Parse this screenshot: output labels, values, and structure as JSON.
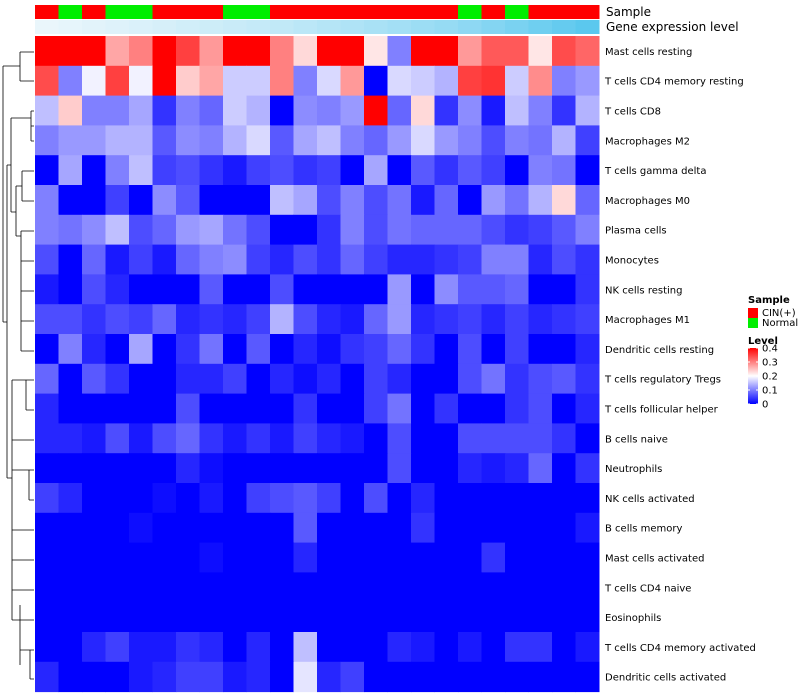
{
  "chart_data": {
    "type": "heatmap",
    "title": "",
    "annotation_labels": [
      "Sample",
      "Gene expression level"
    ],
    "samples": [
      "CIN(+)",
      "Normal",
      "CIN(+)",
      "Normal",
      "Normal",
      "CIN(+)",
      "CIN(+)",
      "CIN(+)",
      "Normal",
      "Normal",
      "CIN(+)",
      "CIN(+)",
      "CIN(+)",
      "CIN(+)",
      "CIN(+)",
      "CIN(+)",
      "CIN(+)",
      "CIN(+)",
      "Normal",
      "CIN(+)",
      "Normal",
      "CIN(+)",
      "CIN(+)",
      "CIN(+)"
    ],
    "expression_level": [
      0.1,
      0.12,
      0.14,
      0.16,
      0.18,
      0.2,
      0.22,
      0.24,
      0.26,
      0.28,
      0.3,
      0.33,
      0.36,
      0.39,
      0.42,
      0.45,
      0.48,
      0.51,
      0.55,
      0.6,
      0.65,
      0.7,
      0.75,
      0.8
    ],
    "rows": [
      "Mast cells resting",
      "T cells CD4 memory resting",
      "T cells CD8",
      "Macrophages M2",
      "T cells gamma delta",
      "Macrophages M0",
      "Plasma cells",
      "Monocytes",
      "NK cells resting",
      "Macrophages M1",
      "Dendritic cells resting",
      "T cells regulatory  Tregs",
      "T cells follicular helper",
      "B cells naive",
      "Neutrophils",
      "NK cells activated",
      "B cells memory",
      "Mast cells activated",
      "T cells CD4 naive",
      "Eosinophils",
      "T cells CD4 memory activated",
      "Dendritic cells activated"
    ],
    "values": [
      [
        0.4,
        0.4,
        0.4,
        0.27,
        0.3,
        0.4,
        0.35,
        0.28,
        0.4,
        0.4,
        0.3,
        0.23,
        0.4,
        0.4,
        0.22,
        0.1,
        0.4,
        0.4,
        0.28,
        0.33,
        0.33,
        0.22,
        0.34,
        0.32
      ],
      [
        0.34,
        0.1,
        0.19,
        0.35,
        0.19,
        0.4,
        0.24,
        0.27,
        0.16,
        0.16,
        0.3,
        0.1,
        0.17,
        0.28,
        0.0,
        0.17,
        0.16,
        0.14,
        0.35,
        0.36,
        0.16,
        0.29,
        0.1,
        0.12
      ],
      [
        0.15,
        0.24,
        0.1,
        0.1,
        0.13,
        0.04,
        0.1,
        0.08,
        0.16,
        0.14,
        0.0,
        0.11,
        0.1,
        0.12,
        0.4,
        0.08,
        0.23,
        0.04,
        0.11,
        0.02,
        0.15,
        0.1,
        0.04,
        0.14
      ],
      [
        0.1,
        0.12,
        0.12,
        0.14,
        0.14,
        0.07,
        0.11,
        0.1,
        0.14,
        0.17,
        0.07,
        0.13,
        0.15,
        0.1,
        0.08,
        0.12,
        0.17,
        0.12,
        0.1,
        0.06,
        0.1,
        0.09,
        0.14,
        0.05
      ],
      [
        0.0,
        0.13,
        0.0,
        0.1,
        0.15,
        0.05,
        0.06,
        0.04,
        0.02,
        0.05,
        0.06,
        0.04,
        0.05,
        0.0,
        0.13,
        0.0,
        0.07,
        0.04,
        0.07,
        0.05,
        0.0,
        0.1,
        0.09,
        0.0
      ],
      [
        0.1,
        0.0,
        0.0,
        0.05,
        0.0,
        0.11,
        0.07,
        0.0,
        0.0,
        0.0,
        0.15,
        0.13,
        0.06,
        0.1,
        0.06,
        0.09,
        0.02,
        0.08,
        0.0,
        0.12,
        0.09,
        0.14,
        0.23,
        0.08
      ],
      [
        0.1,
        0.09,
        0.11,
        0.15,
        0.06,
        0.08,
        0.12,
        0.13,
        0.09,
        0.06,
        0.0,
        0.0,
        0.04,
        0.1,
        0.06,
        0.09,
        0.08,
        0.08,
        0.08,
        0.06,
        0.04,
        0.05,
        0.07,
        0.1
      ],
      [
        0.06,
        0.0,
        0.08,
        0.02,
        0.05,
        0.02,
        0.08,
        0.1,
        0.11,
        0.05,
        0.03,
        0.06,
        0.04,
        0.08,
        0.05,
        0.03,
        0.03,
        0.04,
        0.05,
        0.1,
        0.1,
        0.03,
        0.06,
        0.04
      ],
      [
        0.02,
        0.0,
        0.06,
        0.03,
        0.0,
        0.0,
        0.0,
        0.07,
        0.0,
        0.0,
        0.06,
        0.0,
        0.0,
        0.0,
        0.0,
        0.12,
        0.0,
        0.11,
        0.07,
        0.07,
        0.08,
        0.0,
        0.0,
        0.04
      ],
      [
        0.06,
        0.06,
        0.04,
        0.06,
        0.05,
        0.08,
        0.03,
        0.04,
        0.03,
        0.05,
        0.14,
        0.06,
        0.03,
        0.02,
        0.08,
        0.12,
        0.03,
        0.04,
        0.05,
        0.03,
        0.05,
        0.03,
        0.04,
        0.05
      ],
      [
        0.0,
        0.1,
        0.03,
        0.0,
        0.13,
        0.0,
        0.04,
        0.09,
        0.0,
        0.07,
        0.0,
        0.03,
        0.01,
        0.04,
        0.05,
        0.08,
        0.04,
        0.0,
        0.06,
        0.0,
        0.05,
        0.0,
        0.0,
        0.03
      ],
      [
        0.08,
        0.0,
        0.07,
        0.04,
        0.0,
        0.0,
        0.03,
        0.03,
        0.05,
        0.0,
        0.03,
        0.01,
        0.03,
        0.0,
        0.05,
        0.03,
        0.0,
        0.0,
        0.06,
        0.09,
        0.04,
        0.06,
        0.07,
        0.04
      ],
      [
        0.03,
        0.0,
        0.0,
        0.0,
        0.0,
        0.0,
        0.06,
        0.0,
        0.0,
        0.0,
        0.0,
        0.04,
        0.0,
        0.0,
        0.05,
        0.09,
        0.0,
        0.04,
        0.0,
        0.0,
        0.04,
        0.06,
        0.0,
        0.03
      ],
      [
        0.03,
        0.03,
        0.02,
        0.06,
        0.02,
        0.06,
        0.08,
        0.04,
        0.02,
        0.04,
        0.02,
        0.05,
        0.03,
        0.02,
        0.0,
        0.06,
        0.0,
        0.0,
        0.06,
        0.06,
        0.06,
        0.06,
        0.04,
        0.0
      ],
      [
        0.0,
        0.0,
        0.0,
        0.0,
        0.0,
        0.0,
        0.03,
        0.01,
        0.0,
        0.0,
        0.0,
        0.0,
        0.0,
        0.0,
        0.0,
        0.06,
        0.0,
        0.0,
        0.03,
        0.02,
        0.03,
        0.08,
        0.0,
        0.04
      ],
      [
        0.05,
        0.03,
        0.0,
        0.0,
        0.0,
        0.01,
        0.0,
        0.02,
        0.0,
        0.05,
        0.06,
        0.07,
        0.05,
        0.0,
        0.06,
        0.0,
        0.03,
        0.0,
        0.0,
        0.0,
        0.0,
        0.0,
        0.0,
        0.0
      ],
      [
        0.0,
        0.0,
        0.0,
        0.0,
        0.01,
        0.0,
        0.0,
        0.0,
        0.0,
        0.0,
        0.0,
        0.07,
        0.0,
        0.0,
        0.0,
        0.0,
        0.04,
        0.0,
        0.0,
        0.0,
        0.0,
        0.0,
        0.0,
        0.02
      ],
      [
        0.0,
        0.0,
        0.0,
        0.0,
        0.0,
        0.0,
        0.0,
        0.01,
        0.0,
        0.0,
        0.0,
        0.03,
        0.0,
        0.0,
        0.0,
        0.0,
        0.0,
        0.0,
        0.0,
        0.04,
        0.0,
        0.0,
        0.0,
        0.0
      ],
      [
        0.0,
        0.0,
        0.0,
        0.0,
        0.0,
        0.0,
        0.0,
        0.0,
        0.0,
        0.0,
        0.0,
        0.0,
        0.0,
        0.0,
        0.0,
        0.0,
        0.0,
        0.0,
        0.0,
        0.0,
        0.0,
        0.0,
        0.0,
        0.0
      ],
      [
        0.0,
        0.0,
        0.0,
        0.0,
        0.0,
        0.0,
        0.0,
        0.0,
        0.0,
        0.0,
        0.0,
        0.0,
        0.0,
        0.0,
        0.0,
        0.0,
        0.0,
        0.0,
        0.0,
        0.0,
        0.0,
        0.0,
        0.0,
        0.0
      ],
      [
        0.0,
        0.0,
        0.03,
        0.05,
        0.02,
        0.02,
        0.04,
        0.03,
        0.0,
        0.03,
        0.0,
        0.15,
        0.0,
        0.0,
        0.0,
        0.03,
        0.02,
        0.0,
        0.02,
        0.0,
        0.04,
        0.04,
        0.0,
        0.02
      ],
      [
        0.03,
        0.0,
        0.0,
        0.0,
        0.02,
        0.03,
        0.05,
        0.05,
        0.02,
        0.03,
        0.0,
        0.18,
        0.03,
        0.05,
        0.0,
        0.0,
        0.0,
        0.0,
        0.0,
        0.0,
        0.0,
        0.0,
        0.0,
        0.0
      ]
    ],
    "legend": {
      "sample_title": "Sample",
      "sample_entries": [
        {
          "label": "CIN(+)",
          "color": "#ff0000"
        },
        {
          "label": "Normal",
          "color": "#00ee00"
        }
      ],
      "level_title": "Level",
      "level_ticks": [
        {
          "label": "0.4",
          "value": 0.4
        },
        {
          "label": "0.3",
          "value": 0.3
        },
        {
          "label": "0.2",
          "value": 0.2
        },
        {
          "label": "0.1",
          "value": 0.1
        },
        {
          "label": "0",
          "value": 0
        }
      ]
    },
    "color_scale": {
      "low": "#0000ff",
      "mid": "#ffffff",
      "high": "#ff0000",
      "min": 0,
      "mid_value": 0.2,
      "max": 0.4
    },
    "annotation_colors": {
      "low": "#eaf6fb",
      "high": "#5bc8ee"
    }
  }
}
